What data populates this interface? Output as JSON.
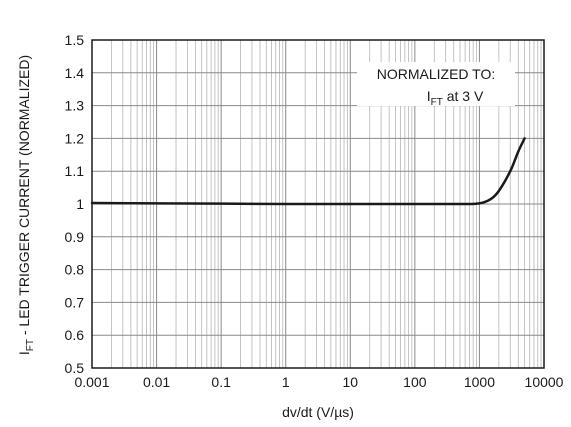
{
  "chart_data": {
    "type": "line",
    "x_scale": "log",
    "xlim": [
      0.001,
      10000
    ],
    "ylim": [
      0.5,
      1.5
    ],
    "grid": true,
    "xlabel": "dv/dt (V/µs)",
    "ylabel": {
      "symbol": "I",
      "subscript": "FT",
      "rest": " - LED  TRIGGER CURRENT (NORMALIZED)"
    },
    "x_ticks": [
      "0.001",
      "0.01",
      "0.1",
      "1",
      "10",
      "100",
      "1000",
      "10000"
    ],
    "y_ticks": [
      "0.5",
      "0.6",
      "0.7",
      "0.8",
      "0.9",
      "1",
      "1.1",
      "1.2",
      "1.3",
      "1.4",
      "1.5"
    ],
    "annotation": {
      "line1": "NORMALIZED TO:",
      "symbol": "I",
      "subscript": "FT",
      "rest": " at 3 V"
    },
    "series": [
      {
        "x": [
          0.001,
          0.01,
          0.1,
          1,
          10,
          100,
          500,
          1000,
          1500,
          2000,
          3000,
          4000,
          5000
        ],
        "y": [
          1.003,
          1.002,
          1.001,
          1.0,
          1.0,
          1.0,
          1.0,
          1.002,
          1.015,
          1.04,
          1.1,
          1.16,
          1.2
        ]
      }
    ]
  }
}
